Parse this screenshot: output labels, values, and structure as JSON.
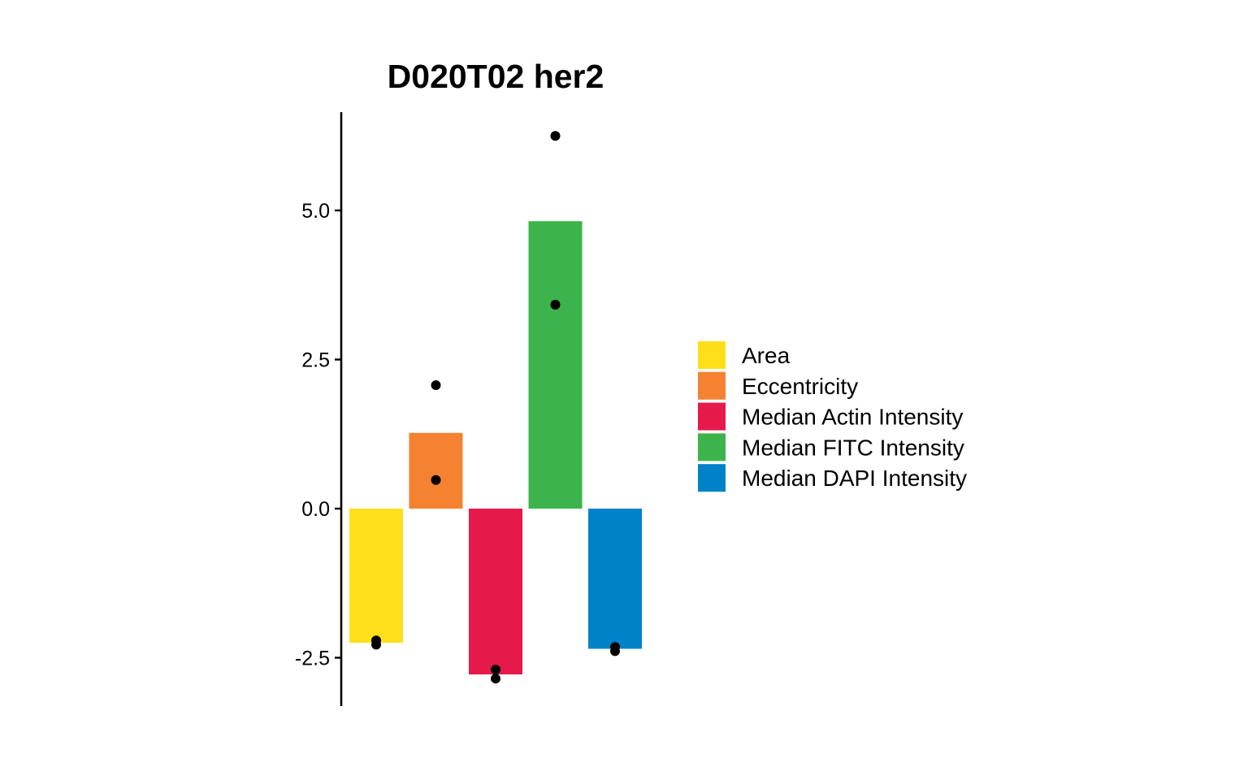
{
  "chart_data": {
    "type": "bar",
    "title": "D020T02 her2",
    "xlabel": "",
    "ylabel": "",
    "categories": [
      "Area",
      "Eccentricity",
      "Median Actin Intensity",
      "Median FITC Intensity",
      "Median DAPI Intensity"
    ],
    "values": [
      -2.25,
      1.27,
      -2.78,
      4.82,
      -2.35
    ],
    "colors": [
      "#fde01a",
      "#f58231",
      "#e6194b",
      "#3cb44b",
      "#0082c8"
    ],
    "points": [
      [
        -2.21,
        -2.28
      ],
      [
        2.07,
        0.48
      ],
      [
        -2.7,
        -2.85
      ],
      [
        6.25,
        3.42
      ],
      [
        -2.32,
        -2.39
      ]
    ],
    "ylim": [
      -3.3,
      6.6
    ],
    "yticks": [
      {
        "value": -2.5,
        "label": "-2.5"
      },
      {
        "value": 0.0,
        "label": "0.0"
      },
      {
        "value": 2.5,
        "label": "2.5"
      },
      {
        "value": 5.0,
        "label": "5.0"
      }
    ],
    "legend": {
      "position": "right",
      "entries": [
        "Area",
        "Eccentricity",
        "Median Actin Intensity",
        "Median FITC Intensity",
        "Median DAPI Intensity"
      ]
    },
    "grid": false
  }
}
